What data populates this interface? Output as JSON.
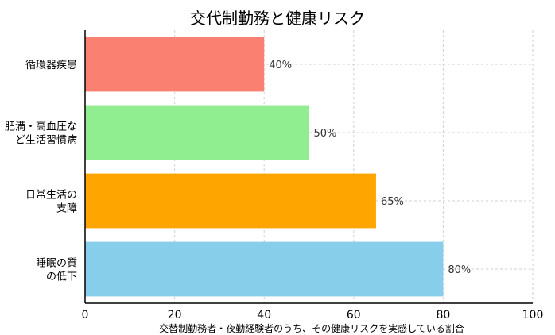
{
  "chart_data": {
    "type": "bar",
    "orientation": "horizontal",
    "title": "交代制勤務と健康リスク",
    "xlabel": "交替制勤務者・夜勤経験者のうち、その健康リスクを実感している割合",
    "ylabel": "",
    "xlim": [
      0,
      100
    ],
    "xticks": [
      0,
      20,
      40,
      60,
      80,
      100
    ],
    "grid": true,
    "categories": [
      [
        "睡眠の質",
        "の低下"
      ],
      [
        "日常生活の",
        "支障"
      ],
      [
        "肥満・高血圧な",
        "ど生活習慣病"
      ],
      [
        "循環器疾患"
      ]
    ],
    "values": [
      80,
      65,
      50,
      40
    ],
    "data_labels": [
      "80%",
      "65%",
      "50%",
      "40%"
    ],
    "colors": [
      "#87ceeb",
      "#ffa500",
      "#90ee90",
      "#fa8072"
    ]
  }
}
